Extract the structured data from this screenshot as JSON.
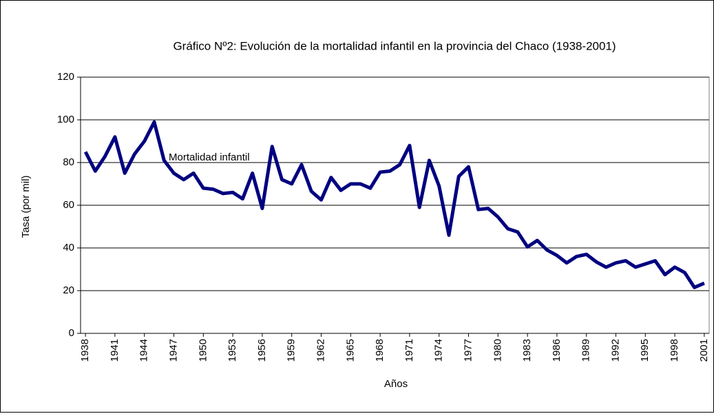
{
  "chart_data": {
    "type": "line",
    "title": "Gráfico Nº2: Evolución de la mortalidad infantil en la provincia del Chaco (1938-2001)",
    "x_label": "Años",
    "y_label": "Tasa (por mil)",
    "x": [
      1938,
      1939,
      1940,
      1941,
      1942,
      1943,
      1944,
      1945,
      1946,
      1947,
      1948,
      1949,
      1950,
      1951,
      1952,
      1953,
      1954,
      1955,
      1956,
      1957,
      1958,
      1959,
      1960,
      1961,
      1962,
      1963,
      1964,
      1965,
      1966,
      1967,
      1968,
      1969,
      1970,
      1971,
      1972,
      1973,
      1974,
      1975,
      1976,
      1977,
      1978,
      1979,
      1980,
      1981,
      1982,
      1983,
      1984,
      1985,
      1986,
      1987,
      1988,
      1989,
      1990,
      1991,
      1992,
      1993,
      1994,
      1995,
      1996,
      1997,
      1998,
      1999,
      2000,
      2001
    ],
    "series": [
      {
        "name": "Mortalidad infantil",
        "color": "#000080",
        "values": [
          85,
          76,
          83,
          92,
          75,
          84,
          90,
          99,
          81,
          75,
          72,
          75,
          68,
          67.5,
          65.5,
          66,
          63,
          75,
          58.5,
          87.5,
          72,
          70,
          79,
          66.5,
          62.5,
          73,
          67,
          70,
          70,
          68,
          75.5,
          76,
          79,
          88,
          59,
          81,
          69,
          46,
          73.5,
          78,
          58,
          58.5,
          54.5,
          49,
          47.5,
          40.5,
          43.5,
          39,
          36.5,
          33,
          36,
          37,
          33.5,
          31,
          33,
          34,
          31,
          32.5,
          34,
          27.5,
          31,
          28.5,
          21.5,
          23.5
        ]
      }
    ],
    "xlim": [
      1937.5,
      2001.5
    ],
    "xticks": [
      1938,
      1941,
      1944,
      1947,
      1950,
      1953,
      1956,
      1959,
      1962,
      1965,
      1968,
      1971,
      1974,
      1977,
      1980,
      1983,
      1986,
      1989,
      1992,
      1995,
      1998,
      2001
    ],
    "ylim": [
      0,
      120
    ],
    "yticks": [
      0,
      20,
      40,
      60,
      80,
      100,
      120
    ],
    "grid": true
  }
}
